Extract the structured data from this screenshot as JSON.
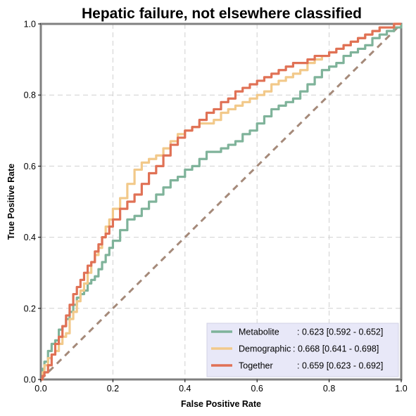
{
  "chart_data": {
    "type": "line",
    "title": "Hepatic failure, not elsewhere classified",
    "xlabel": "False Positive Rate",
    "ylabel": "True Positive Rate",
    "xlim": [
      0,
      1
    ],
    "ylim": [
      0,
      1
    ],
    "xticks": [
      "0.0",
      "0.2",
      "0.4",
      "0.6",
      "0.8",
      "1.0"
    ],
    "yticks": [
      "0.0",
      "0.2",
      "0.4",
      "0.6",
      "0.8",
      "1.0"
    ],
    "grid": true,
    "legend_position": "bottom-right",
    "diagonal": {
      "x": [
        0,
        1
      ],
      "y": [
        0,
        1
      ],
      "color": "#a58a7a",
      "style": "dashed"
    },
    "series": [
      {
        "name": "Metabolite",
        "stat_label": ": 0.623 [0.592 - 0.652]",
        "color": "#7fb39a",
        "x": [
          0,
          0.005,
          0.01,
          0.02,
          0.03,
          0.04,
          0.05,
          0.06,
          0.07,
          0.08,
          0.09,
          0.1,
          0.11,
          0.12,
          0.13,
          0.14,
          0.15,
          0.16,
          0.17,
          0.18,
          0.19,
          0.2,
          0.22,
          0.24,
          0.26,
          0.28,
          0.3,
          0.32,
          0.34,
          0.36,
          0.38,
          0.4,
          0.42,
          0.44,
          0.46,
          0.48,
          0.5,
          0.52,
          0.54,
          0.56,
          0.58,
          0.6,
          0.62,
          0.64,
          0.66,
          0.68,
          0.7,
          0.72,
          0.74,
          0.76,
          0.78,
          0.8,
          0.82,
          0.84,
          0.86,
          0.88,
          0.9,
          0.92,
          0.94,
          0.96,
          0.98,
          1.0
        ],
        "y": [
          0,
          0.03,
          0.05,
          0.08,
          0.1,
          0.11,
          0.14,
          0.15,
          0.17,
          0.19,
          0.21,
          0.23,
          0.24,
          0.25,
          0.27,
          0.28,
          0.29,
          0.31,
          0.33,
          0.35,
          0.37,
          0.39,
          0.42,
          0.45,
          0.46,
          0.48,
          0.5,
          0.52,
          0.54,
          0.56,
          0.57,
          0.59,
          0.6,
          0.62,
          0.64,
          0.64,
          0.65,
          0.66,
          0.67,
          0.69,
          0.7,
          0.72,
          0.74,
          0.76,
          0.77,
          0.78,
          0.79,
          0.81,
          0.83,
          0.85,
          0.87,
          0.88,
          0.89,
          0.91,
          0.92,
          0.93,
          0.94,
          0.96,
          0.97,
          0.98,
          0.99,
          1.0
        ]
      },
      {
        "name": "Demographic",
        "stat_label": ": 0.668 [0.641 - 0.698]",
        "color": "#f2c98a",
        "x": [
          0,
          0.005,
          0.01,
          0.02,
          0.03,
          0.04,
          0.05,
          0.06,
          0.07,
          0.08,
          0.09,
          0.1,
          0.11,
          0.12,
          0.13,
          0.14,
          0.15,
          0.16,
          0.17,
          0.18,
          0.19,
          0.2,
          0.22,
          0.24,
          0.26,
          0.28,
          0.3,
          0.32,
          0.34,
          0.36,
          0.38,
          0.4,
          0.42,
          0.44,
          0.46,
          0.48,
          0.5,
          0.52,
          0.54,
          0.56,
          0.58,
          0.6,
          0.62,
          0.64,
          0.66,
          0.68,
          0.7,
          0.72,
          0.74,
          0.76,
          0.78,
          0.8,
          0.82,
          0.84,
          0.86,
          0.88,
          0.9,
          0.92,
          0.94,
          0.96,
          0.98,
          1.0
        ],
        "y": [
          0,
          0.02,
          0.04,
          0.06,
          0.07,
          0.08,
          0.1,
          0.12,
          0.13,
          0.17,
          0.19,
          0.22,
          0.25,
          0.27,
          0.3,
          0.33,
          0.35,
          0.37,
          0.4,
          0.43,
          0.45,
          0.48,
          0.51,
          0.55,
          0.59,
          0.61,
          0.62,
          0.63,
          0.65,
          0.67,
          0.69,
          0.7,
          0.71,
          0.72,
          0.72,
          0.73,
          0.75,
          0.76,
          0.77,
          0.78,
          0.79,
          0.8,
          0.81,
          0.83,
          0.84,
          0.85,
          0.86,
          0.87,
          0.89,
          0.9,
          0.91,
          0.92,
          0.93,
          0.94,
          0.95,
          0.96,
          0.97,
          0.98,
          0.99,
          0.99,
          1.0,
          1.0
        ]
      },
      {
        "name": "Together",
        "stat_label": ": 0.659 [0.623 - 0.692]",
        "color": "#e07155",
        "x": [
          0,
          0.005,
          0.01,
          0.02,
          0.03,
          0.04,
          0.05,
          0.06,
          0.07,
          0.08,
          0.09,
          0.1,
          0.11,
          0.12,
          0.13,
          0.14,
          0.15,
          0.16,
          0.17,
          0.18,
          0.19,
          0.2,
          0.22,
          0.24,
          0.26,
          0.28,
          0.3,
          0.32,
          0.34,
          0.36,
          0.38,
          0.4,
          0.42,
          0.44,
          0.46,
          0.48,
          0.5,
          0.52,
          0.54,
          0.56,
          0.58,
          0.6,
          0.62,
          0.64,
          0.66,
          0.68,
          0.7,
          0.72,
          0.74,
          0.76,
          0.78,
          0.8,
          0.82,
          0.84,
          0.86,
          0.88,
          0.9,
          0.92,
          0.94,
          0.96,
          0.98,
          1.0
        ],
        "y": [
          0,
          0.01,
          0.02,
          0.04,
          0.07,
          0.1,
          0.12,
          0.15,
          0.18,
          0.21,
          0.24,
          0.26,
          0.28,
          0.3,
          0.32,
          0.33,
          0.36,
          0.38,
          0.4,
          0.41,
          0.43,
          0.45,
          0.48,
          0.5,
          0.52,
          0.55,
          0.58,
          0.6,
          0.63,
          0.66,
          0.68,
          0.7,
          0.71,
          0.73,
          0.75,
          0.76,
          0.78,
          0.79,
          0.81,
          0.82,
          0.83,
          0.84,
          0.85,
          0.86,
          0.87,
          0.88,
          0.89,
          0.89,
          0.9,
          0.91,
          0.91,
          0.92,
          0.93,
          0.94,
          0.95,
          0.96,
          0.97,
          0.98,
          0.99,
          0.99,
          1.0,
          1.0
        ]
      }
    ]
  }
}
